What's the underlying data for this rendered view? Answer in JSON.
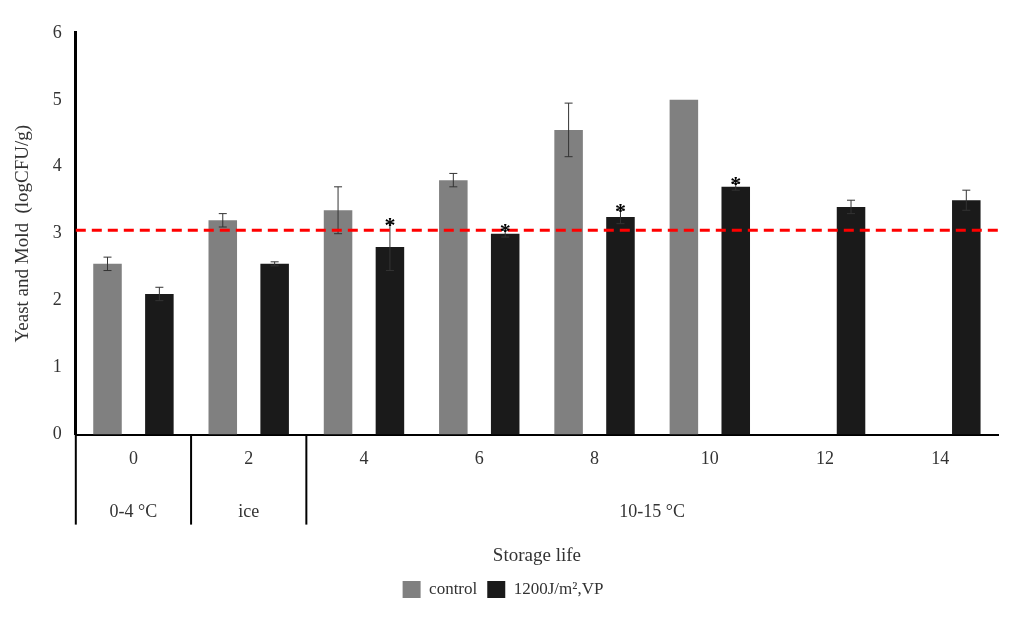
{
  "chart_data": {
    "type": "bar",
    "xlabel": "Storage life",
    "ylabel": "Yeast and Mold  (logCFU/g)",
    "categories": [
      "0",
      "2",
      "4",
      "6",
      "8",
      "10",
      "12",
      "14"
    ],
    "series": [
      {
        "name": "control",
        "color": "#808080",
        "values": [
          2.55,
          3.2,
          3.35,
          3.8,
          4.55,
          5.0,
          null,
          null
        ],
        "errors": [
          0.1,
          0.1,
          0.35,
          0.1,
          0.4,
          null,
          null,
          null
        ]
      },
      {
        "name": "1200J/m²,VP",
        "color": "#1a1a1a",
        "values": [
          2.1,
          2.55,
          2.8,
          3.0,
          3.25,
          3.7,
          3.4,
          3.5
        ],
        "errors": [
          0.1,
          0.03,
          0.35,
          0.05,
          0.1,
          0.05,
          0.1,
          0.15
        ],
        "value_labels": [
          null,
          null,
          "*",
          "*",
          "*",
          "*",
          null,
          null
        ]
      }
    ],
    "ylim": [
      0,
      6
    ],
    "yticks": [
      0,
      1,
      2,
      3,
      4,
      5,
      6
    ],
    "grid": false,
    "legend": "bottom",
    "ref_lines": [
      {
        "axis": "y",
        "value": 3.05,
        "color": "#ff0000",
        "line_style": "dashed"
      }
    ],
    "annotations": [
      "0-4 °C",
      "ice",
      "10-15 °C"
    ]
  }
}
